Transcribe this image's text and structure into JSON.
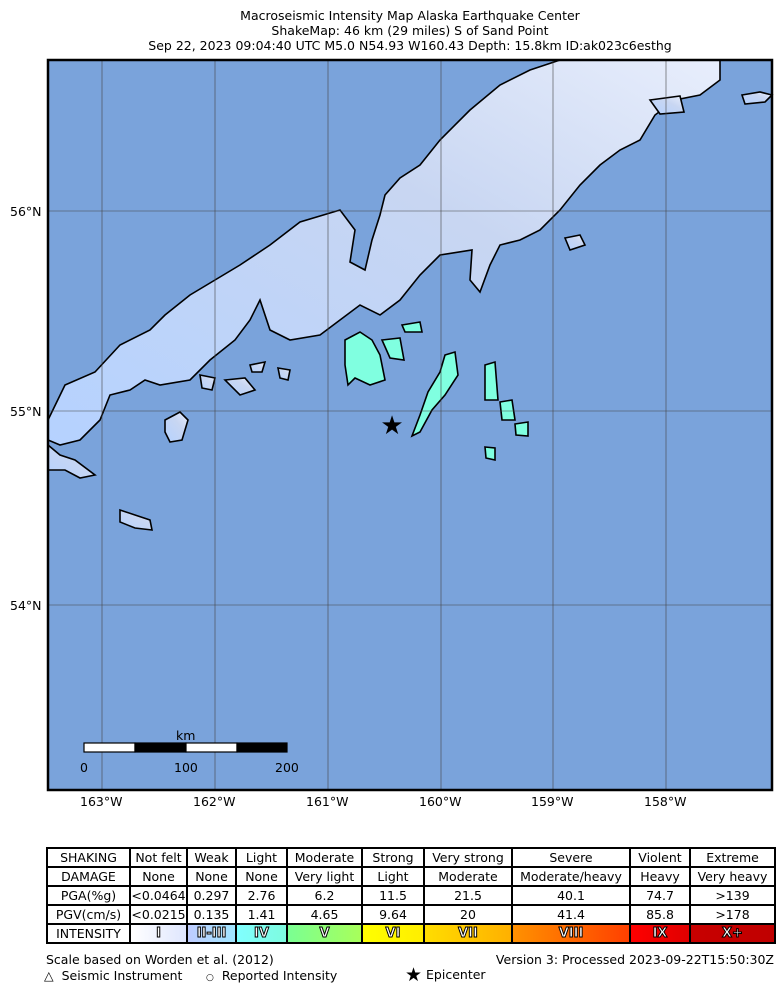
{
  "header": {
    "line1": "Macroseismic Intensity Map Alaska Earthquake Center",
    "line2": "ShakeMap: 46 km (29 miles) S of Sand Point",
    "line3": "Sep 22, 2023 09:04:40 UTC M5.0 N54.93 W160.43 Depth: 15.8km ID:ak023c6esthg"
  },
  "map": {
    "water_color": "#7aa3db",
    "land_color": "#b8c8f0",
    "intensity_iv_color": "#80ffe0",
    "lat_labels": [
      "56°N",
      "55°N",
      "54°N"
    ],
    "lon_labels": [
      "163°W",
      "162°W",
      "161°W",
      "160°W",
      "159°W",
      "158°W"
    ],
    "epicenter": {
      "lat": 54.93,
      "lon": -160.43,
      "icon": "star-icon"
    },
    "scale_bar": {
      "unit": "km",
      "ticks": [
        "0",
        "100",
        "200"
      ]
    }
  },
  "legend": {
    "rows": [
      {
        "label": "SHAKING",
        "cells": [
          "Not felt",
          "Weak",
          "Light",
          "Moderate",
          "Strong",
          "Very strong",
          "Severe",
          "Violent",
          "Extreme"
        ]
      },
      {
        "label": "DAMAGE",
        "cells": [
          "None",
          "None",
          "None",
          "Very light",
          "Light",
          "Moderate",
          "Moderate/heavy",
          "Heavy",
          "Very heavy"
        ]
      },
      {
        "label": "PGA(%g)",
        "cells": [
          "<0.0464",
          "0.297",
          "2.76",
          "6.2",
          "11.5",
          "21.5",
          "40.1",
          "74.7",
          ">139"
        ]
      },
      {
        "label": "PGV(cm/s)",
        "cells": [
          "<0.0215",
          "0.135",
          "1.41",
          "4.65",
          "9.64",
          "20",
          "41.4",
          "85.8",
          ">178"
        ]
      }
    ],
    "intensity": {
      "label": "INTENSITY",
      "cells": [
        "I",
        "II-III",
        "IV",
        "V",
        "VI",
        "VII",
        "VIII",
        "IX",
        "X+"
      ],
      "colors": [
        [
          "#ffffff",
          "#dfe6fe"
        ],
        [
          "#bfccff",
          "#a0e6ff"
        ],
        [
          "#80ffff",
          "#7efbdf"
        ],
        [
          "#7aff93",
          "#a8ff5a"
        ],
        [
          "#ffff00",
          "#ffee00"
        ],
        [
          "#ffdd00",
          "#ffb000"
        ],
        [
          "#ff9100",
          "#ff4000"
        ],
        [
          "#ff0000",
          "#e00000"
        ],
        [
          "#c80000",
          "#c00000"
        ]
      ]
    },
    "scale_note": "Scale based on Worden et al. (2012)",
    "version": "Version 3: Processed 2023-09-22T15:50:30Z",
    "symbols": [
      {
        "icon": "triangle-icon",
        "label": "Seismic Instrument"
      },
      {
        "icon": "circle-icon",
        "label": "Reported Intensity"
      },
      {
        "icon": "star-icon",
        "label": "Epicenter"
      }
    ]
  }
}
